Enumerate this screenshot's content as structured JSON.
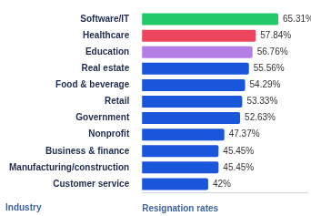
{
  "chart_data": {
    "type": "bar",
    "orientation": "horizontal",
    "x_label": "Resignation rates",
    "y_label": "Industry",
    "categories": [
      "Software/IT",
      "Healthcare",
      "Education",
      "Real estate",
      "Food & beverage",
      "Retail",
      "Government",
      "Nonprofit",
      "Business & finance",
      "Manufacturing/construction",
      "Customer service"
    ],
    "values": [
      65.31,
      57.84,
      56.76,
      55.56,
      54.29,
      53.33,
      52.63,
      47.37,
      45.45,
      45.45,
      42
    ],
    "value_labels": [
      "65.31%",
      "57.84%",
      "56.76%",
      "55.56%",
      "54.29%",
      "53.33%",
      "52.63%",
      "47.37%",
      "45.45%",
      "45.45%",
      "42%"
    ],
    "colors": [
      "#21c96b",
      "#ef4660",
      "#b57de6",
      "#1a56db",
      "#1a56db",
      "#1a56db",
      "#1a56db",
      "#1a56db",
      "#1a56db",
      "#1a56db",
      "#1a56db"
    ],
    "xlim": [
      20,
      75
    ],
    "grid": false,
    "data_labels": true,
    "tick_labels": "y"
  }
}
